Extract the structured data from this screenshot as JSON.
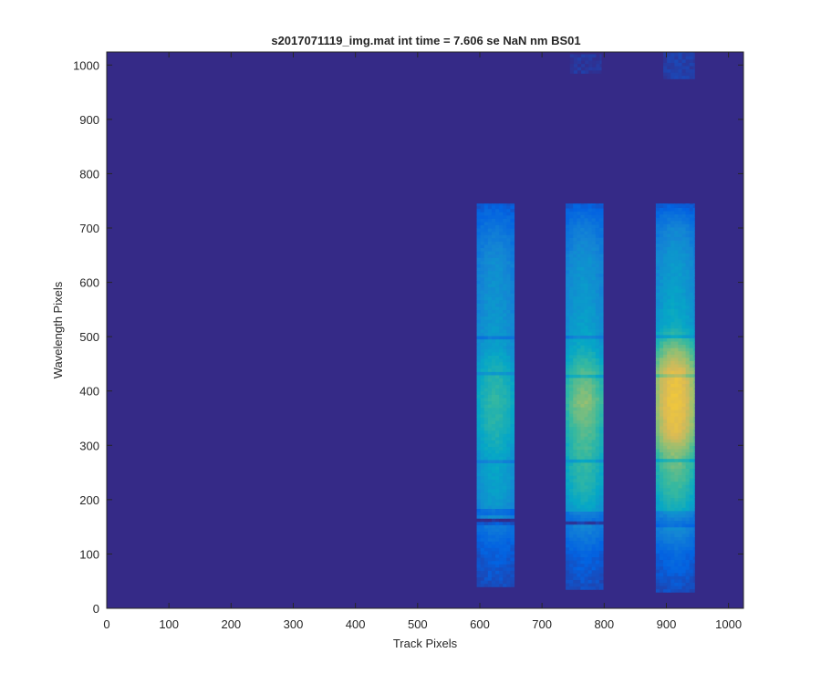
{
  "chart_data": {
    "type": "heatmap",
    "title": "s2017071119_img.mat int time = 7.606 se  NaN nm BS01",
    "xlabel": "Track Pixels",
    "ylabel": "Wavelength Pixels",
    "xlim": [
      0,
      1024
    ],
    "ylim": [
      0,
      1024
    ],
    "x_ticks": [
      0,
      100,
      200,
      300,
      400,
      500,
      600,
      700,
      800,
      900,
      1000
    ],
    "y_ticks": [
      0,
      100,
      200,
      300,
      400,
      500,
      600,
      700,
      800,
      900,
      1000
    ],
    "grid": false,
    "colormap": "parula",
    "colors": {
      "background": "#352A87",
      "stops": [
        "#352A87",
        "#0363E1",
        "#1485D4",
        "#06A7C6",
        "#38B99E",
        "#92BF73",
        "#D9BA56",
        "#FCCE2E",
        "#F9FB0E"
      ]
    },
    "value_range": [
      0,
      1
    ],
    "bands": [
      {
        "x_range": [
          595,
          655
        ],
        "y_range": [
          40,
          745
        ],
        "profile": [
          [
            40,
            0.08
          ],
          [
            100,
            0.12
          ],
          [
            150,
            0.2
          ],
          [
            175,
            0.3
          ],
          [
            220,
            0.35
          ],
          [
            280,
            0.38
          ],
          [
            330,
            0.45
          ],
          [
            380,
            0.48
          ],
          [
            430,
            0.45
          ],
          [
            480,
            0.35
          ],
          [
            520,
            0.32
          ],
          [
            580,
            0.3
          ],
          [
            640,
            0.28
          ],
          [
            700,
            0.2
          ],
          [
            745,
            0.12
          ]
        ]
      },
      {
        "x_range": [
          738,
          798
        ],
        "y_range": [
          35,
          745
        ],
        "profile": [
          [
            35,
            0.08
          ],
          [
            100,
            0.13
          ],
          [
            150,
            0.25
          ],
          [
            175,
            0.35
          ],
          [
            220,
            0.45
          ],
          [
            280,
            0.5
          ],
          [
            330,
            0.55
          ],
          [
            380,
            0.62
          ],
          [
            430,
            0.55
          ],
          [
            480,
            0.4
          ],
          [
            520,
            0.35
          ],
          [
            580,
            0.32
          ],
          [
            640,
            0.3
          ],
          [
            700,
            0.22
          ],
          [
            745,
            0.12
          ]
        ]
      },
      {
        "x_range": [
          883,
          945
        ],
        "y_range": [
          30,
          745
        ],
        "profile": [
          [
            30,
            0.08
          ],
          [
            100,
            0.15
          ],
          [
            150,
            0.28
          ],
          [
            175,
            0.4
          ],
          [
            220,
            0.5
          ],
          [
            280,
            0.6
          ],
          [
            330,
            0.78
          ],
          [
            380,
            0.82
          ],
          [
            430,
            0.8
          ],
          [
            480,
            0.6
          ],
          [
            520,
            0.4
          ],
          [
            580,
            0.35
          ],
          [
            640,
            0.32
          ],
          [
            700,
            0.25
          ],
          [
            745,
            0.12
          ]
        ]
      },
      {
        "x_range": [
          745,
          795
        ],
        "y_range": [
          985,
          1020
        ],
        "profile": [
          [
            985,
            0.03
          ],
          [
            1020,
            0.03
          ]
        ]
      },
      {
        "x_range": [
          895,
          945
        ],
        "y_range": [
          975,
          1024
        ],
        "profile": [
          [
            975,
            0.05
          ],
          [
            1024,
            0.05
          ]
        ]
      }
    ],
    "stripe_rows": [
      155,
      160,
      165,
      172,
      178,
      270,
      430,
      500
    ]
  }
}
